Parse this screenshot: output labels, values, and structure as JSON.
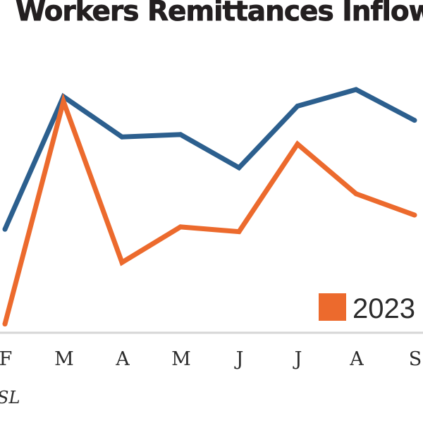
{
  "title": "Workers Remittances Inflow",
  "source": "SL",
  "colors": {
    "series_a": "#2c5f8e",
    "series_b": "#ec6a2d",
    "baseline": "#d6d6d6",
    "text": "#2b2b2b"
  },
  "chart_data": {
    "type": "line",
    "title": "Workers Remittances Inflow",
    "xlabel": "",
    "ylabel": "",
    "categories": [
      "F",
      "M",
      "A",
      "M",
      "J",
      "J",
      "A",
      "S"
    ],
    "ylim": [
      0,
      100
    ],
    "grid": false,
    "legend_position": "bottom-right",
    "series": [
      {
        "color": "#2c5f8e",
        "values": [
          41,
          97,
          80,
          81,
          67,
          93,
          100,
          87
        ]
      },
      {
        "name": "2023",
        "color": "#ec6a2d",
        "values": [
          1,
          95,
          27,
          42,
          40,
          77,
          56,
          47
        ]
      }
    ]
  }
}
